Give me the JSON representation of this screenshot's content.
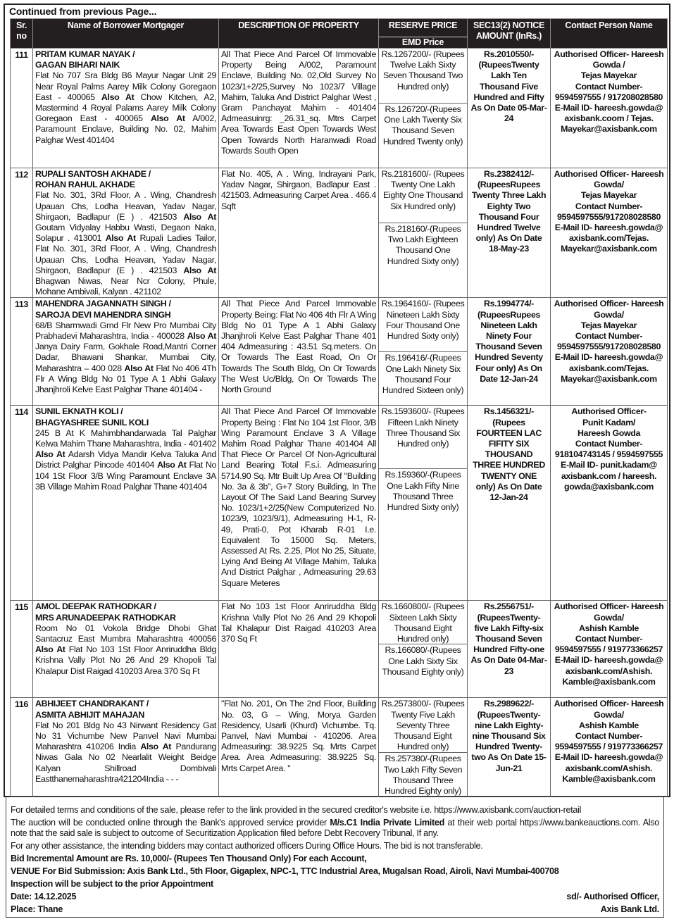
{
  "continued": "Continued from previous Page...",
  "headers": {
    "sr": "Sr. no",
    "name": "Name of Borrower Mortgager",
    "description": "DESCRIPTION OF PROPERTY",
    "reserve": "RESERVE PRICE",
    "emd": "EMD Price",
    "notice": "SEC13(2) NOTICE AMOUNT (InRs.)",
    "contact": "Contact Person Name"
  },
  "rows": [
    {
      "sr": "111",
      "names": [
        "PRITAM KUMAR  NAYAK /",
        "GAGAN BIHARI NAIK"
      ],
      "address": [
        {
          "t": "Flat No 707 Sra Bldg B6 Mayur Nagar Unit 29 Near Royal Palms Aarey Milk Colony Goregaon East - 400065 ",
          "b": false
        },
        {
          "t": "Also At",
          "b": true
        },
        {
          "t": " Chow Kitchen, A2, Mastermind 4 Royal Palams Aarey Milk Colony Goregaon East - 400065 ",
          "b": false
        },
        {
          "t": "Also At",
          "b": true
        },
        {
          "t": " A/002, Paramount Enclave, Building No. 02, Mahim Palghar West  401404",
          "b": false
        }
      ],
      "description": "All That Piece And Parcel Of Immovable Property Being A/002, Paramount Enclave, Building No. 02,Old Survey No 1023/1+2/25,Survey No 1023/7 Village Mahim, Taluka And District Palghar West , Gram Panchayat Mahim - 401404 Admeasuinrg: _26.31_sq. Mtrs Carpet Area Towards East Open Towards West Open Towards North Haranwadi Road Towards South Open",
      "reserve": "Rs.1267200/- (Rupees Twelve Lakh Sixty Seven Thousand Two Hundred  only)",
      "emd": "Rs.126720/-(Rupees One Lakh Twenty Six Thousand Seven Hundred Twenty only)",
      "notice": "Rs.2010550/- (RupeesTwenty Lakh Ten Thousand Five Hundred and Fifty As On Date 05-Mar-24",
      "contact": [
        "Authorised Officer- Hareesh Gowda /",
        "Tejas Mayekar",
        "Contact Number-",
        "9594597555 / 917208028580",
        "E-Mail ID- hareesh.gowda@",
        "axisbank.coom / Tejas.",
        "Mayekar@axisbank.com"
      ]
    },
    {
      "sr": "112",
      "names": [
        "RUPALI SANTOSH AKHADE /",
        "ROHAN RAHUL AKHADE"
      ],
      "address": [
        {
          "t": "Flat No. 301, 3Rd Floor, A . Wing, Chandresh Upauan Chs, Lodha Heavan, Yadav Nagar, Shirgaon, Badlapur (E ) . 421503 ",
          "b": false
        },
        {
          "t": "Also At",
          "b": true
        },
        {
          "t": " Goutam Vidyalay Habbu Wasti, Degaon Naka, Solapur . 413001 ",
          "b": false
        },
        {
          "t": "Also At",
          "b": true
        },
        {
          "t": " Rupali Ladies Tailor, Flat No. 301, 3Rd Floor, A . Wing, Chandresh Upauan Chs, Lodha Heavan, Yadav Nagar, Shirgaon, Badlapur (E ) . 421503 ",
          "b": false
        },
        {
          "t": "Also At",
          "b": true
        },
        {
          "t": " Bhagwan Niwas, Near Ncr Colony, Phule, Mohane Ambivali, Kalyan . 421102",
          "b": false
        }
      ],
      "description": "Flat No. 405, A . Wing, Indrayani Park, Yadav Nagar, Shirgaon, Badlapur East . 421503.  Admeasuring Carpet Area . 466.4 Sqft",
      "reserve": "Rs.2181600/- (Rupees Twenty One Lakh Eighty One Thousand Six Hundred  only)",
      "emd": "Rs.218160/-(Rupees Two Lakh Eighteen Thousand One Hundred Sixty  only)",
      "notice": "Rs.2382412/- (RupeesRupees Twenty Three Lakh  Eighty Two Thousand Four Hundred Twelve only) As On Date 18-May-23",
      "contact": [
        "Authorised Officer- Hareesh Gowda/",
        "Tejas Mayekar",
        "Contact Number-",
        "9594597555/917208028580",
        "E-Mail ID- hareesh.gowda@",
        "axisbank.com/Tejas.",
        "Mayekar@axisbank.com"
      ]
    },
    {
      "sr": "113",
      "names": [
        "MAHENDRA JAGANNATH SINGH /",
        "SAROJA DEVI MAHENDRA SINGH"
      ],
      "address": [
        {
          "t": " 68/B Sharmwadi Grnd Flr New Pro Mumbai City Prabhadevi Maharashtra, India - 400028 ",
          "b": false
        },
        {
          "t": "Also At",
          "b": true
        },
        {
          "t": " Janya Dairy Farm, Gokhale Road,Mantri Corner Dadar, Bhawani Shankar, Mumbai City, Maharashtra  – 400 028 ",
          "b": false
        },
        {
          "t": "Also At",
          "b": true
        },
        {
          "t": " Flat No 406 4Th Flr A Wing Bldg No 01 Type A 1 Abhi Galaxy Jhanjhroli Kelve East Palghar Thane 401404   -",
          "b": false
        }
      ],
      "description": "All That Piece And Parcel Immovable Property Being: Flat No 406 4th Flr A Wing Bldg No 01 Type A 1 Abhi Galaxy Jhanjhroli Kelve East Palghar Thane 401 404 Admeasuring : 43.51 Sq.meters. On Or Towards The  East Road, On Or Towards The South Bldg, On Or Towards The West Uc/Bldg, On Or Towards The  North Ground",
      "reserve": "Rs.1964160/- (Rupees Nineteen Lakh Sixty Four Thousand One Hundred Sixty  only)",
      "emd": "Rs.196416/-(Rupees One Lakh Ninety Six Thousand Four Hundred Sixteen only)",
      "notice": "Rs.1994774/- (RupeesRupees Nineteen Lakh Ninety Four Thousand Seven Hundred Seventy Four only) As On Date 12-Jan-24",
      "contact": [
        "Authorised Officer- Hareesh Gowda/",
        "Tejas Mayekar",
        "Contact Number-",
        "9594597555/917208028580",
        "E-Mail ID- hareesh.gowda@",
        "axisbank.com/Tejas.",
        "Mayekar@axisbank.com"
      ]
    },
    {
      "sr": "114",
      "names": [
        "SUNIL EKNATH KOLI /",
        "BHAGYASHREE SUNIL KOLI"
      ],
      "address": [
        {
          "t": "245 B At K Mahimbhandarwada Tal Palghar Kelwa Mahim Thane Maharashtra, India - 401402 ",
          "b": false
        },
        {
          "t": "Also At",
          "b": true
        },
        {
          "t": " Adarsh Vidya Mandir Kelva Taluka And District Palghar Pincode 401404 ",
          "b": false
        },
        {
          "t": "Also At",
          "b": true
        },
        {
          "t": " Flat No 104 1St Floor 3/B Wing Paramount Enclave 3A 3B Village Mahim Road Palghar Thane 401404",
          "b": false
        }
      ],
      "description": "All That Piece And Parcel Of Immovable Property Being : Flat No 104 1st Floor, 3/B Wing Paramount Enclave 3 A Village Mahim Road Palghar Thane 401404  All That Piece Or Parcel Of Non-Agricultural  Land Bearing Total F.s.i. Admeasuring 5714.90 Sq. Mtr Built Up Area Of \"Building No. 3a & 3b\", G+7 Story Building, In The Layout Of The Said Land Bearing Survey No. 1023/1+2/25(New Computerized No. 1023/9, 1023/9/1), Admeasuring H-1, R-49, Prati-0, Pot Kharab R-01 I.e. Equivalent To 15000 Sq. Meters, Assessed At Rs. 2.25,  Plot No 25, Situate, Lying And Being At Village Mahim, Taluka And District Palghar , Admeasuring 29.63 Square Meteres",
      "reserve": "Rs.1593600/- (Rupees Fifteen Lakh Ninety Three Thousand Six Hundred  only)",
      "emd": "Rs.159360/-(Rupees One Lakh Fifty Nine Thousand Three Hundred Sixty  only)",
      "notice": "Rs.1456321/- (Rupees FOURTEEN LAC FIFITY SIX THOUSAND THREE HUNDRED TWENTY ONE only) As On Date 12-Jan-24",
      "contact": [
        "Authorised Officer-",
        "Punit Kadam/",
        "Hareesh Gowda",
        "Contact Number-",
        "918104743145 / 9594597555",
        "E-Mail ID- punit.kadam@",
        "axisbank.com / hareesh.",
        "gowda@axisbank.com"
      ]
    },
    {
      "sr": "115",
      "names": [
        "AMOL DEEPAK RATHODKAR /",
        "MRS ARUNADEEPAK RATHODKAR"
      ],
      "address": [
        {
          "t": "Room No 01 Vokola Bridge Dhobi Ghat Santacruz East Mumbra Maharashtra 400056 ",
          "b": false
        },
        {
          "t": "Also At",
          "b": true
        },
        {
          "t": " Flat No 103 1St Floor Anriruddha Bldg Krishna Vally Plot No 26 And 29 Khopoli Tal Khalapur Dist Raigad 410203 Area 370 Sq Ft",
          "b": false
        }
      ],
      "description": "Flat No 103 1st Floor Anriruddha Bldg Krishna Vally Plot No 26 And 29 Khopoli Tal Khalapur Dist Raigad 410203 Area 370 Sq Ft",
      "reserve": "Rs.1660800/- (Rupees Sixteen Lakh Sixty  Thousand Eight Hundred  only)",
      "emd": "Rs.166080/-(Rupees One Lakh Sixty Six Thousand Eighty only)",
      "notice": "Rs.2556751/- (RupeesTwenty-five Lakh Fifty-six Thousand Seven Hundred Fifty-one As On Date 04-Mar-23",
      "contact": [
        "Authorised Officer- Hareesh Gowda/",
        "Ashish Kamble",
        "Contact Number-",
        "9594597555 / 919773366257",
        "E-Mail ID- hareesh.gowda@",
        "axisbank.com/Ashish.",
        "Kamble@axisbank.com"
      ]
    },
    {
      "sr": "116",
      "names": [
        "ABHIJEET CHANDRAKANT /",
        "ASMITA ABHIJIT MAHAJAN"
      ],
      "address": [
        {
          "t": "Flat No  201 Bldg No 43 Nirwant Residency Gat No 31 Vichumbe New Panvel  Navi Mumbai Maharashtra 410206 India ",
          "b": false
        },
        {
          "t": "Also At",
          "b": true
        },
        {
          "t": " Pandurang Niwas Gala No 02 Nearlalit Weight Beidge Kalyan Shillroad Dombivali Eastthanemaharashtra421204India - - -",
          "b": false
        }
      ],
      "description": "\"Flat No. 201, On The 2nd Floor, Building No. 03, G – Wing, Morya Garden Residency, Usarli (Khurd) Vichumbe. Tq. Panvel, Navi Mumbai - 410206. Area Admeasuring: 38.9225 Sq. Mrts Carpet Area. Area Admeasuring: 38.9225 Sq. Mrts Carpet Area.        \"",
      "reserve": "Rs.2573800/- (Rupees Twenty Five Lakh Seventy Three Thousand Eight Hundred  only)",
      "emd": "Rs.257380/-(Rupees Two Lakh Fifty Seven Thousand Three Hundred Eighty  only)",
      "notice": "Rs.2989622/- (RupeesTwenty-nine Lakh Eighty-nine Thousand Six Hundred Twenty-two As On Date 15-Jun-21",
      "contact": [
        "Authorised Officer- Hareesh Gowda/",
        "Ashish Kamble",
        "Contact Number-",
        "9594597555 / 919773366257",
        "E-Mail ID- hareesh.gowda@",
        "axisbank.com/Ashish.",
        "Kamble@axisbank.com"
      ]
    }
  ],
  "footer": {
    "terms": "For detailed terms and conditions of the sale, please refer to the link provided in the secured creditor's website i.e. https://www.axisbank.com/auction-retail",
    "auction": [
      {
        "t": "The auction will be conducted online through the Bank's approved service provider ",
        "b": false
      },
      {
        "t": "M/s.C1 India Private Limited",
        "b": true
      },
      {
        "t": " at their web portal https://www.bankeauctions.com. Also note that the said sale is subject to outcome of Securitization Application filed before Debt Recovery Tribunal, If any.",
        "b": false
      }
    ],
    "assistance": "For any other assistance, the intending bidders may contact authorized officers During Office Hours. The bid is not transferable.",
    "bid_increment": "Bid Incremental Amount are Rs. 10,000/- (Rupees Ten Thousand Only) For each Account,",
    "venue": "VENUE For Bid Submission: Axis Bank Ltd., 5th Floor, Gigaplex, NPC-1, TTC Industrial Area, Mugalsan Road, Airoli, Navi Mumbai-400708",
    "inspection": "Inspection will be subject to the prior Appointment",
    "date": "Date: 14.12.2025",
    "place": "Place: Thane",
    "signatory": "sd/- Authorised Officer,",
    "bank": "Axis Bank Ltd."
  }
}
